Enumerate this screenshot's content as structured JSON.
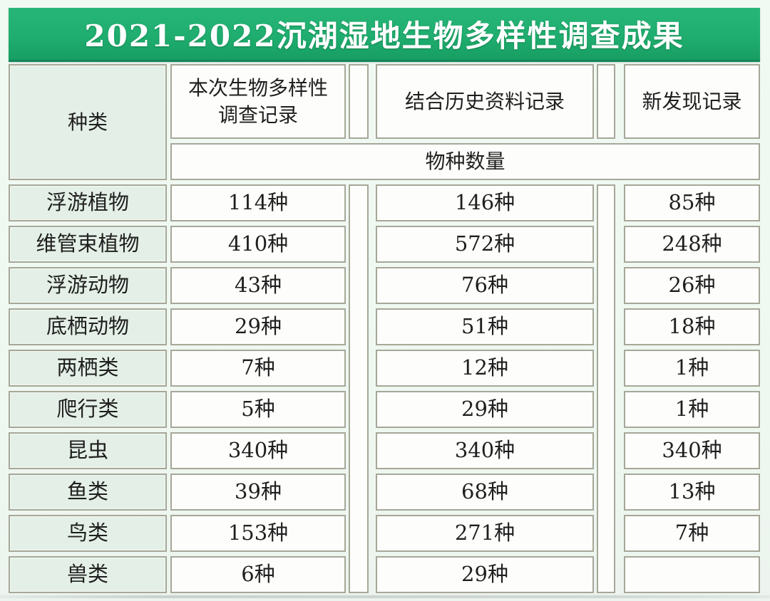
{
  "banner": {
    "title": "2021-2022沉湖湿地生物多样性调查成果",
    "bg_color": "#1fae6f",
    "text_color": "#ffffff"
  },
  "table": {
    "col_headers": {
      "species": "种类",
      "current_survey": "本次生物多样性调查记录",
      "historical": "结合历史资料记录",
      "new_discovery": "新发现记录"
    },
    "subheader": "物种数量",
    "rows": [
      {
        "label": "浮游植物",
        "current": "114种",
        "historical": "146种",
        "new": "85种"
      },
      {
        "label": "维管束植物",
        "current": "410种",
        "historical": "572种",
        "new": "248种"
      },
      {
        "label": "浮游动物",
        "current": "43种",
        "historical": "76种",
        "new": "26种"
      },
      {
        "label": "底栖动物",
        "current": "29种",
        "historical": "51种",
        "new": "18种"
      },
      {
        "label": "两栖类",
        "current": "7种",
        "historical": "12种",
        "new": "1种"
      },
      {
        "label": "爬行类",
        "current": "5种",
        "historical": "29种",
        "new": "1种"
      },
      {
        "label": "昆虫",
        "current": "340种",
        "historical": "340种",
        "new": "340种"
      },
      {
        "label": "鱼类",
        "current": "39种",
        "historical": "68种",
        "new": "13种"
      },
      {
        "label": "鸟类",
        "current": "153种",
        "historical": "271种",
        "new": "7种"
      },
      {
        "label": "兽类",
        "current": "6种",
        "historical": "29种",
        "new": ""
      }
    ]
  },
  "colors": {
    "banner_green": "#1fae6f",
    "page_background": "#eef7f0",
    "species_column_mint": "#e4f0e7",
    "data_cell_white": "#fdfefb",
    "cell_border": "#a6a798",
    "text": "#1f1f1f"
  },
  "chart_data": {
    "type": "table",
    "title": "2021-2022沉湖湿地生物多样性调查成果",
    "columns": [
      "种类",
      "本次生物多样性调查记录",
      "结合历史资料记录",
      "新发现记录"
    ],
    "unit_header": "物种数量",
    "unit": "种",
    "rows": [
      [
        "浮游植物",
        114,
        146,
        85
      ],
      [
        "维管束植物",
        410,
        572,
        248
      ],
      [
        "浮游动物",
        43,
        76,
        26
      ],
      [
        "底栖动物",
        29,
        51,
        18
      ],
      [
        "两栖类",
        7,
        12,
        1
      ],
      [
        "爬行类",
        5,
        29,
        1
      ],
      [
        "昆虫",
        340,
        340,
        340
      ],
      [
        "鱼类",
        39,
        68,
        13
      ],
      [
        "鸟类",
        153,
        271,
        7
      ],
      [
        "兽类",
        6,
        29,
        null
      ]
    ]
  }
}
